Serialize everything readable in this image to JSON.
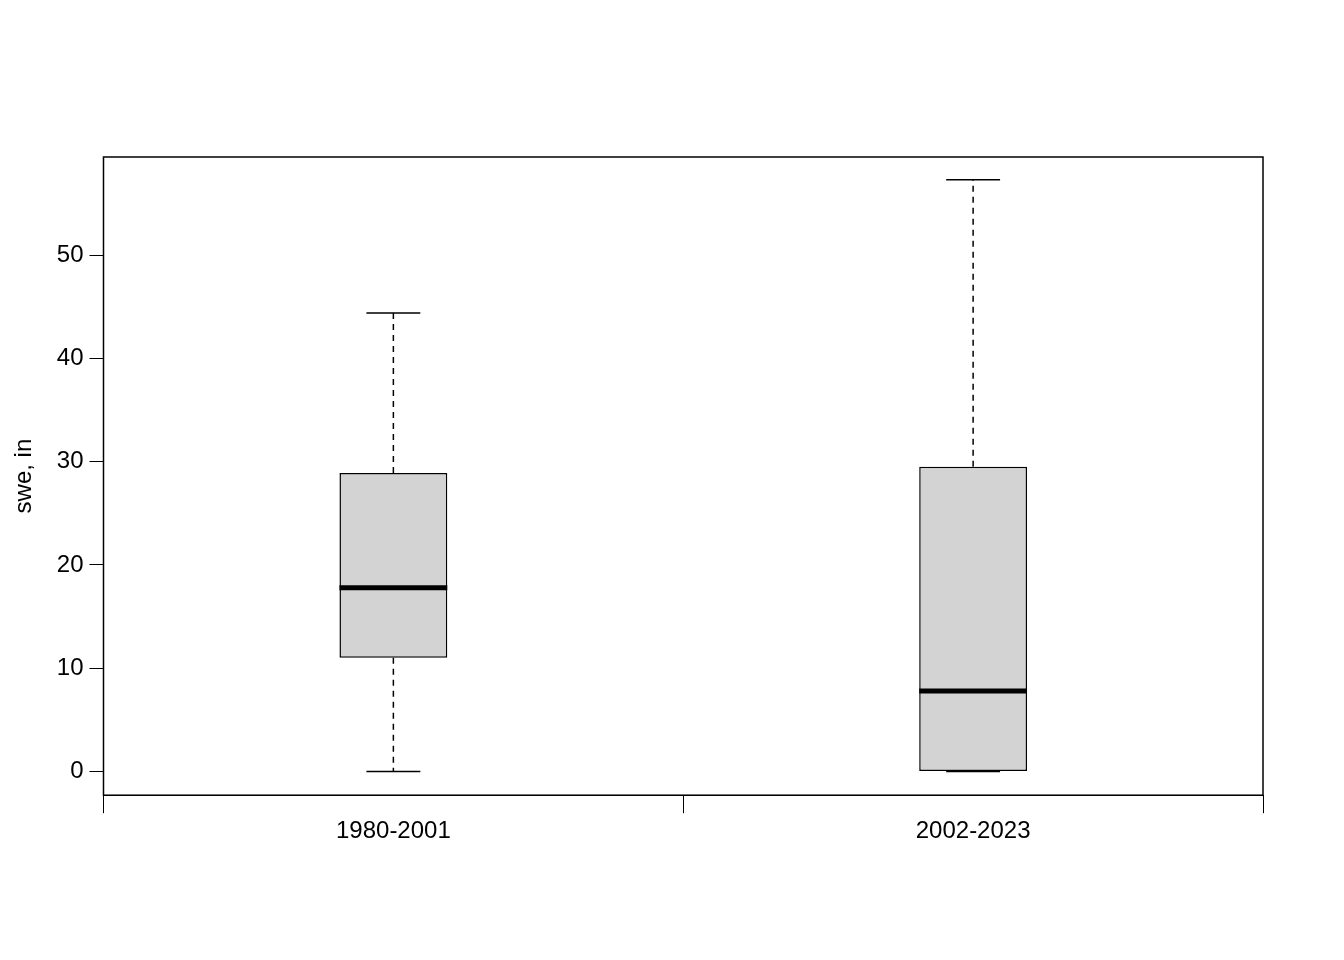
{
  "chart_data": {
    "type": "boxplot",
    "y_label": "swe, in",
    "categories": [
      "1980-2001",
      "2002-2023"
    ],
    "min": [
      0,
      0
    ],
    "q1": [
      11,
      0
    ],
    "median": [
      17.8,
      7.8
    ],
    "q3": [
      28.9,
      29.5
    ],
    "max": [
      44.4,
      57.3
    ],
    "color": "#d3d3d3",
    "ylim": [
      -2.3,
      59.5
    ],
    "yticks": [
      0,
      10,
      20,
      30,
      40,
      50
    ],
    "grid": false
  }
}
